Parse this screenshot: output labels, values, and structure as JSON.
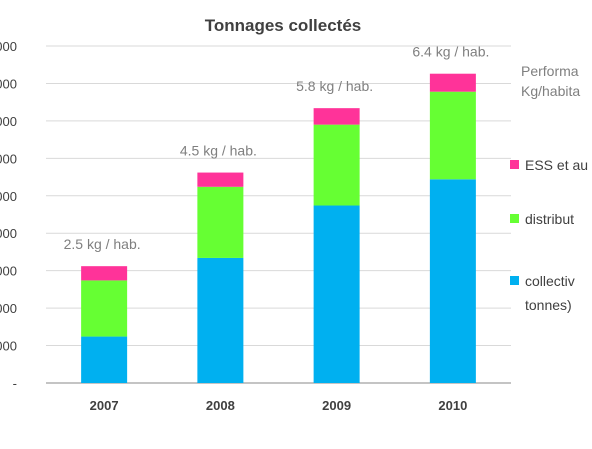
{
  "chart_data": {
    "type": "bar",
    "stacked": true,
    "title": "Tonnages collectés",
    "categories": [
      "2007",
      "2008",
      "2009",
      "2010"
    ],
    "series": [
      {
        "name": "collectiv",
        "color": "#00b0f0",
        "values": [
          62,
          167,
          237,
          272
        ]
      },
      {
        "name": "distribut",
        "color": "#66ff33",
        "values": [
          75,
          95,
          108,
          117
        ]
      },
      {
        "name": "ESS et au",
        "color": "#ff3399",
        "values": [
          19,
          19,
          22,
          24
        ]
      }
    ],
    "bar_labels": [
      "2.5 kg / hab.",
      "4.5 kg / hab.",
      "5.8 kg / hab.",
      "6.4 kg / hab."
    ],
    "y_tick_labels": [
      "-",
      "000",
      "000",
      "000",
      "000",
      "000",
      "000",
      "000",
      "000",
      "000"
    ],
    "ylim": [
      0,
      450
    ],
    "grid": true,
    "legend": {
      "placement": "right",
      "heading_lines": [
        "Performa",
        "Kg/habita"
      ],
      "entries": [
        {
          "lines": [
            "ESS et au"
          ],
          "color": "#ff3399"
        },
        {
          "lines": [
            "distribut"
          ],
          "color": "#66ff33"
        },
        {
          "lines": [
            "collectiv",
            "tonnes)"
          ],
          "color": "#00b0f0"
        }
      ]
    }
  }
}
